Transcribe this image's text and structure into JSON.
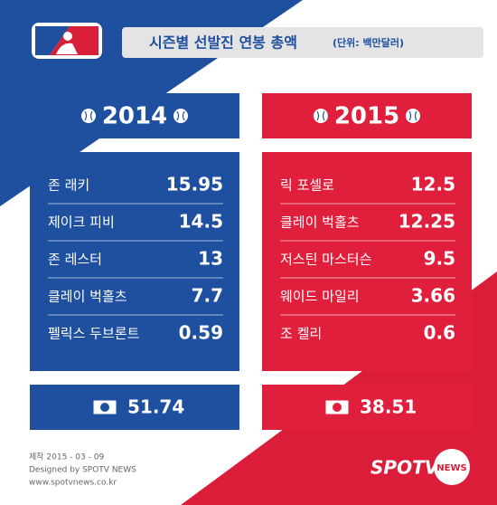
{
  "header": {
    "title": "시즌별 선발진 연봉 총액",
    "unit": "(단위: 백만달러)"
  },
  "panels": [
    {
      "year": "2014",
      "rows": [
        [
          "존 래키",
          15.95
        ],
        [
          "제이크 피비",
          14.5
        ],
        [
          "존 레스터",
          13
        ],
        [
          "클레이 벅홀츠",
          7.7
        ],
        [
          "펠릭스 두브론트",
          0.59
        ]
      ],
      "total": 51.74
    },
    {
      "year": "2015",
      "rows": [
        [
          "릭 포셀로",
          12.5
        ],
        [
          "클레이 벅홀츠",
          12.25
        ],
        [
          "저스틴 마스터슨",
          9.5
        ],
        [
          "웨이드 마일리",
          3.66
        ],
        [
          "조 켈리",
          0.6
        ]
      ],
      "total": 38.51
    }
  ],
  "footer": {
    "date": "제작 2015 - 03 - 09",
    "credit": "Designed by SPOTV NEWS",
    "url": "www.spotvnews.co.kr"
  },
  "logo": {
    "brand": "SPOTV",
    "tag": "NEWS"
  }
}
